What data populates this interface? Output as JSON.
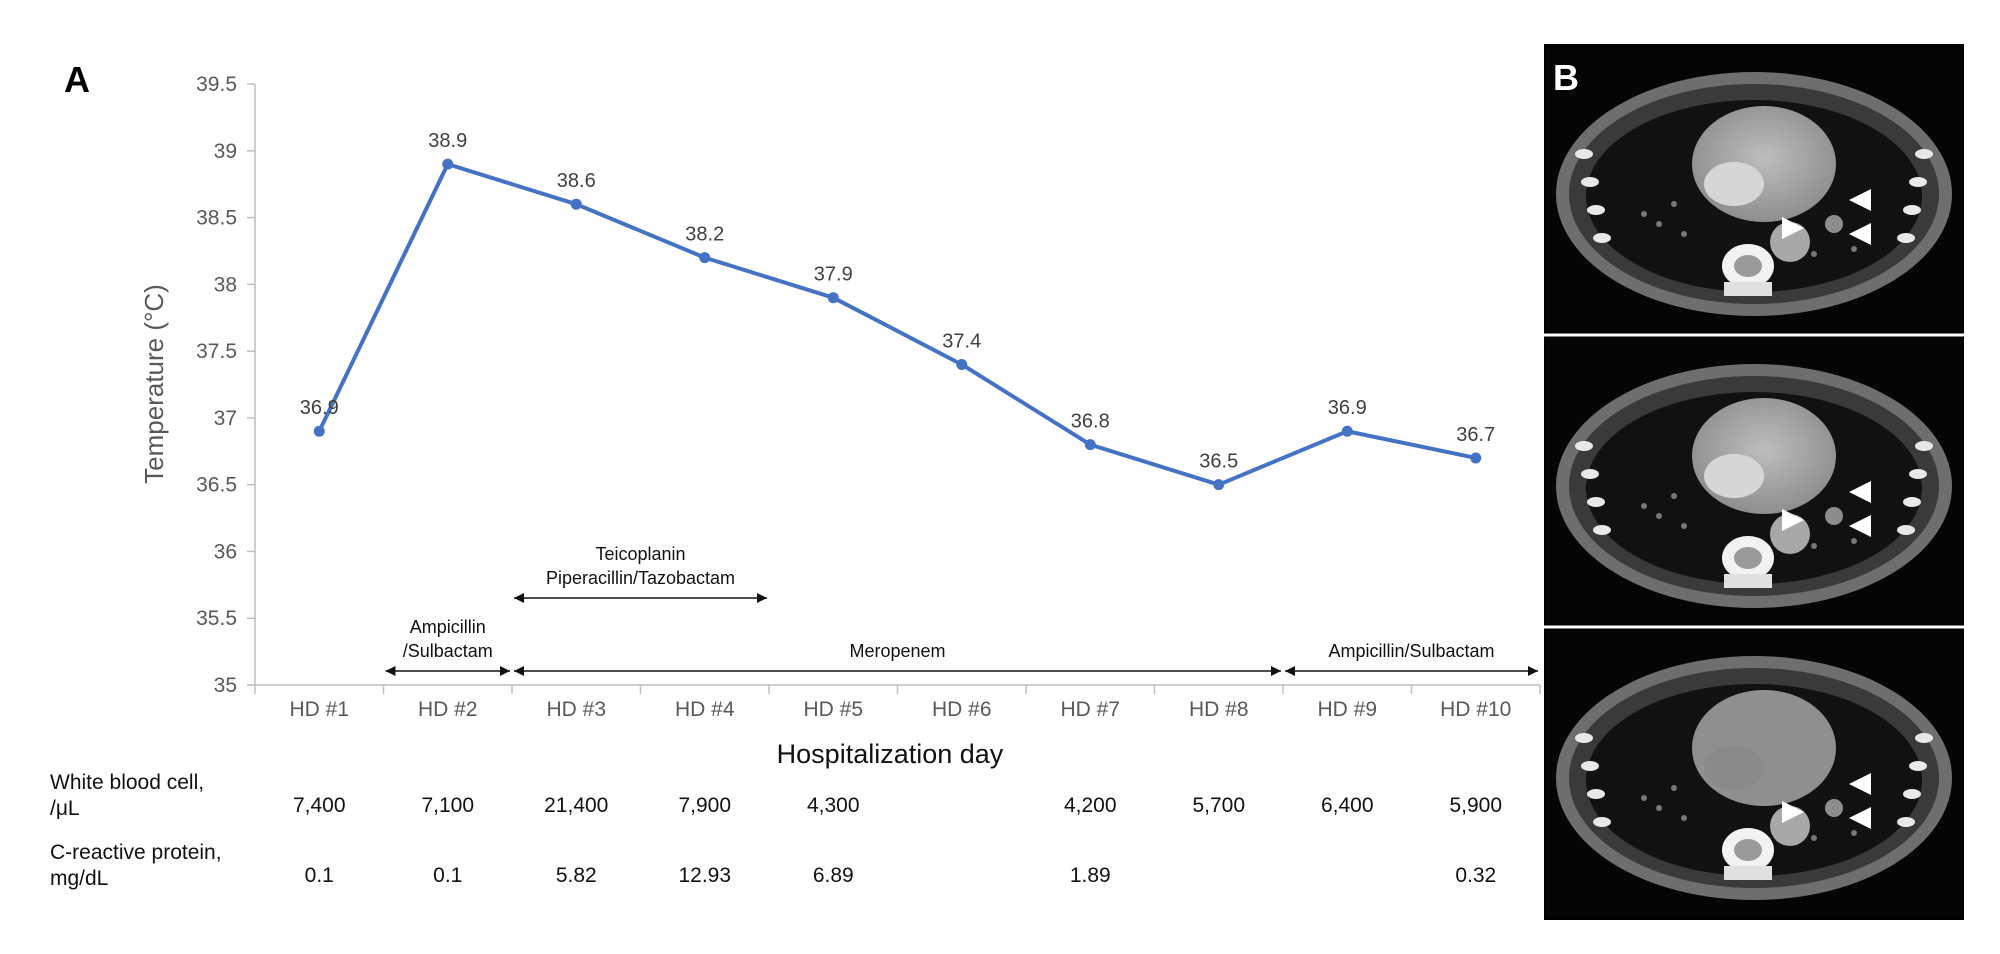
{
  "panel_a_label": "A",
  "panel_b_label": "B",
  "chart_data": {
    "type": "line",
    "title": "",
    "xlabel": "Hospitalization day",
    "ylabel": "Temperature (°C)",
    "ylim": [
      35,
      39.5
    ],
    "y_ticks": [
      "35",
      "35.5",
      "36",
      "36.5",
      "37",
      "37.5",
      "38",
      "38.5",
      "39",
      "39.5"
    ],
    "categories": [
      "HD #1",
      "HD #2",
      "HD #3",
      "HD #4",
      "HD #5",
      "HD #6",
      "HD #7",
      "HD #8",
      "HD #9",
      "HD #10"
    ],
    "series": [
      {
        "values": [
          36.9,
          38.9,
          38.6,
          38.2,
          37.9,
          37.4,
          36.8,
          36.5,
          36.9,
          36.7
        ],
        "labels": [
          "36.9",
          "38.9",
          "38.6",
          "38.2",
          "37.9",
          "37.4",
          "36.8",
          "36.5",
          "36.9",
          "36.7"
        ],
        "color": "#4472C4"
      }
    ],
    "grid": false,
    "legend": "none"
  },
  "antibiotics": [
    {
      "lines": [
        "Ampicillin",
        "/Sulbactam"
      ],
      "start": 1.5,
      "end": 2.5
    },
    {
      "lines": [
        "Teicoplanin",
        "Piperacillin/Tazobactam"
      ],
      "start": 2.5,
      "end": 4.5
    },
    {
      "lines": [
        "Meropenem"
      ],
      "start": 2.5,
      "end": 8.5
    },
    {
      "lines": [
        "Ampicillin/Sulbactam"
      ],
      "start": 8.5,
      "end": 10.5
    }
  ],
  "labs": [
    {
      "name_lines": [
        "White blood cell,",
        "/μL"
      ],
      "values": [
        "7,400",
        "7,100",
        "21,400",
        "7,900",
        "4,300",
        "",
        "4,200",
        "5,700",
        "6,400",
        "5,900"
      ]
    },
    {
      "name_lines": [
        "C-reactive protein,",
        "mg/dL"
      ],
      "values": [
        "0.1",
        "0.1",
        "5.82",
        "12.93",
        "6.89",
        "",
        "1.89",
        "",
        "",
        "0.32"
      ]
    }
  ],
  "ct_images": [
    {
      "arrowheads": 3
    },
    {
      "arrowheads": 3
    },
    {
      "arrowheads": 3
    }
  ]
}
